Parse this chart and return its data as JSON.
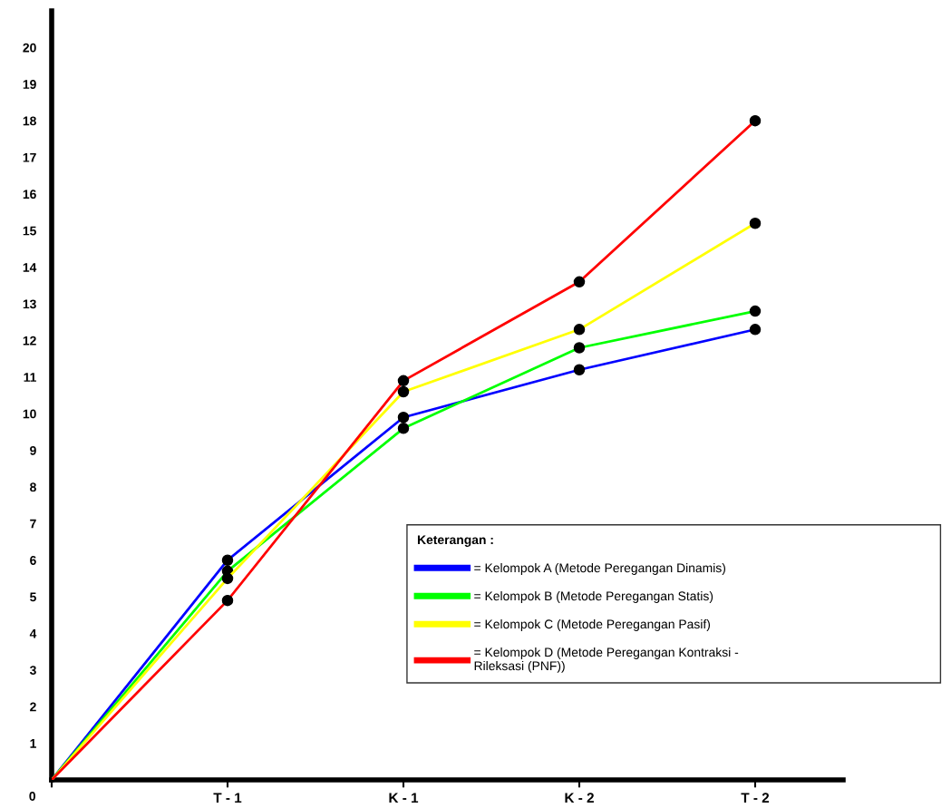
{
  "chart_data": {
    "type": "line",
    "legend_title": "Keterangan :",
    "categories": [
      null,
      "T - 1",
      "K - 1",
      "K - 2",
      "T - 2"
    ],
    "series": [
      {
        "name": "= Kelompok A (Metode Peregangan Dinamis)",
        "color": "#0000ff",
        "values": [
          0,
          6.0,
          9.9,
          11.2,
          12.3
        ]
      },
      {
        "name": "= Kelompok B (Metode Peregangan Statis)",
        "color": "#00ff00",
        "values": [
          0,
          5.7,
          9.6,
          11.8,
          12.8
        ]
      },
      {
        "name": "= Kelompok C (Metode Peregangan Pasif)",
        "color": "#ffff00",
        "values": [
          0,
          5.5,
          10.6,
          12.3,
          15.2
        ]
      },
      {
        "name": "= Kelompok D (Metode Peregangan Kontraksi -\nRileksasi (PNF))",
        "color": "#ff0000",
        "values": [
          0,
          4.9,
          10.9,
          13.6,
          18.0
        ]
      }
    ],
    "ylim": [
      0,
      21
    ],
    "yticks": [
      1,
      2,
      3,
      4,
      5,
      6,
      7,
      8,
      9,
      10,
      11,
      12,
      13,
      14,
      15,
      16,
      17,
      18,
      19,
      20
    ],
    "annotations": [
      "0"
    ],
    "marker": "circle",
    "legend": "bottom right",
    "grid": false
  }
}
